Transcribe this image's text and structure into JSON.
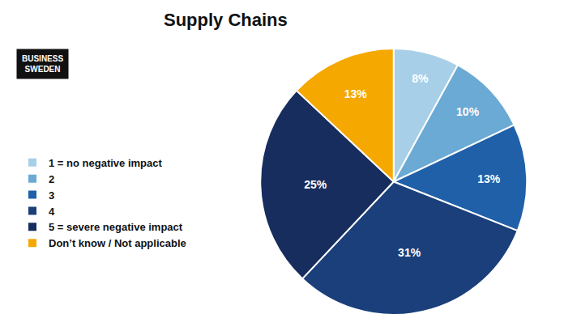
{
  "chart_data": {
    "type": "pie",
    "title": "Supply Chains",
    "categories": [
      "1 = no negative impact",
      "2",
      "3",
      "4",
      "5 = severe negative impact",
      "Don’t know / Not applicable"
    ],
    "values": [
      8,
      10,
      13,
      31,
      25,
      13
    ],
    "value_labels": [
      "8%",
      "10%",
      "13%",
      "31%",
      "25%",
      "13%"
    ],
    "colors": [
      "#a8cfe8",
      "#6aaad4",
      "#2060a8",
      "#1a3f7a",
      "#162d5e",
      "#f5a800"
    ],
    "data_labels": true,
    "legend": "left",
    "annotations": [
      "BUSINESS",
      "SWEDEN"
    ]
  }
}
